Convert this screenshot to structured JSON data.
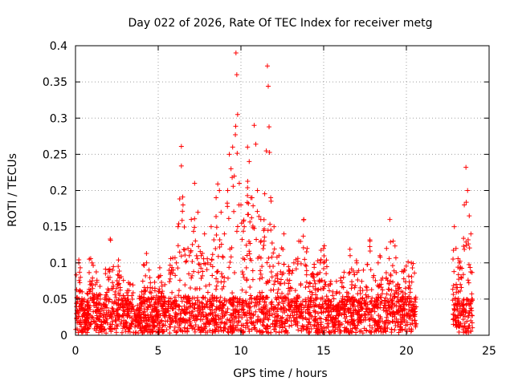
{
  "chart_data": {
    "type": "scatter",
    "title": "Day 022 of 2026, Rate Of TEC Index for receiver metg",
    "xlabel": "GPS time / hours",
    "ylabel": "ROTI / TECUs",
    "xlim": [
      0,
      25
    ],
    "ylim": [
      0,
      0.4
    ],
    "xticks": [
      0,
      5,
      10,
      15,
      20,
      25
    ],
    "xtick_labels": [
      "0",
      "5",
      "10",
      "15",
      "20",
      "25"
    ],
    "yticks": [
      0,
      0.05,
      0.1,
      0.15,
      0.2,
      0.25,
      0.3,
      0.35,
      0.4
    ],
    "ytick_labels": [
      "0",
      "0.05",
      "0.1",
      "0.15",
      "0.2",
      "0.25",
      "0.3",
      "0.35",
      "0.4"
    ],
    "grid": true,
    "marker": "+",
    "color": "#ff0000",
    "data_gap_hours": [
      20.6,
      22.8
    ],
    "series": [
      {
        "points": [
          [
            0.1,
            0.02
          ],
          [
            0.2,
            0.1
          ],
          [
            0.3,
            0.08
          ],
          [
            0.4,
            0.06
          ],
          [
            0.6,
            0.04
          ],
          [
            0.8,
            0.03
          ],
          [
            1.0,
            0.1
          ],
          [
            1.2,
            0.07
          ],
          [
            1.5,
            0.05
          ],
          [
            1.8,
            0.04
          ],
          [
            2.0,
            0.09
          ],
          [
            2.1,
            0.133
          ],
          [
            2.4,
            0.06
          ],
          [
            2.6,
            0.104
          ],
          [
            3.0,
            0.05
          ],
          [
            3.3,
            0.07
          ],
          [
            3.6,
            0.03
          ],
          [
            4.0,
            0.06
          ],
          [
            4.3,
            0.1
          ],
          [
            4.6,
            0.05
          ],
          [
            5.0,
            0.08
          ],
          [
            5.4,
            0.07
          ],
          [
            5.8,
            0.09
          ],
          [
            6.1,
            0.1
          ],
          [
            6.2,
            0.15
          ],
          [
            6.4,
            0.261
          ],
          [
            6.4,
            0.234
          ],
          [
            6.5,
            0.18
          ],
          [
            6.8,
            0.12
          ],
          [
            7.0,
            0.16
          ],
          [
            7.2,
            0.21
          ],
          [
            7.4,
            0.17
          ],
          [
            7.6,
            0.11
          ],
          [
            7.8,
            0.14
          ],
          [
            8.0,
            0.1
          ],
          [
            8.2,
            0.15
          ],
          [
            8.5,
            0.19
          ],
          [
            8.6,
            0.209
          ],
          [
            8.7,
            0.2
          ],
          [
            8.8,
            0.17
          ],
          [
            9.0,
            0.14
          ],
          [
            9.2,
            0.2
          ],
          [
            9.3,
            0.25
          ],
          [
            9.4,
            0.23
          ],
          [
            9.5,
            0.26
          ],
          [
            9.6,
            0.22
          ],
          [
            9.7,
            0.39
          ],
          [
            9.75,
            0.36
          ],
          [
            9.8,
            0.305
          ],
          [
            9.9,
            0.21
          ],
          [
            10.0,
            0.18
          ],
          [
            10.2,
            0.15
          ],
          [
            10.4,
            0.26
          ],
          [
            10.5,
            0.24
          ],
          [
            10.6,
            0.19
          ],
          [
            10.8,
            0.29
          ],
          [
            10.9,
            0.264
          ],
          [
            11.0,
            0.2
          ],
          [
            11.2,
            0.16
          ],
          [
            11.4,
            0.13
          ],
          [
            11.6,
            0.372
          ],
          [
            11.65,
            0.344
          ],
          [
            11.7,
            0.288
          ],
          [
            11.8,
            0.19
          ],
          [
            12.0,
            0.15
          ],
          [
            12.3,
            0.11
          ],
          [
            12.6,
            0.14
          ],
          [
            12.9,
            0.09
          ],
          [
            13.2,
            0.1
          ],
          [
            13.5,
            0.13
          ],
          [
            13.8,
            0.16
          ],
          [
            14.0,
            0.12
          ],
          [
            14.4,
            0.08
          ],
          [
            14.8,
            0.1
          ],
          [
            15.0,
            0.12
          ],
          [
            15.4,
            0.07
          ],
          [
            15.8,
            0.06
          ],
          [
            16.2,
            0.08
          ],
          [
            16.6,
            0.11
          ],
          [
            17.0,
            0.1
          ],
          [
            17.4,
            0.09
          ],
          [
            17.8,
            0.13
          ],
          [
            18.0,
            0.08
          ],
          [
            18.4,
            0.11
          ],
          [
            18.8,
            0.12
          ],
          [
            19.0,
            0.16
          ],
          [
            19.2,
            0.13
          ],
          [
            19.5,
            0.07
          ],
          [
            19.9,
            0.09
          ],
          [
            20.3,
            0.1
          ],
          [
            20.5,
            0.05
          ],
          [
            22.9,
            0.15
          ],
          [
            23.0,
            0.12
          ],
          [
            23.2,
            0.1
          ],
          [
            23.3,
            0.08
          ],
          [
            23.5,
            0.18
          ],
          [
            23.6,
            0.232
          ],
          [
            23.7,
            0.2
          ],
          [
            23.8,
            0.165
          ],
          [
            23.9,
            0.14
          ]
        ]
      }
    ]
  }
}
